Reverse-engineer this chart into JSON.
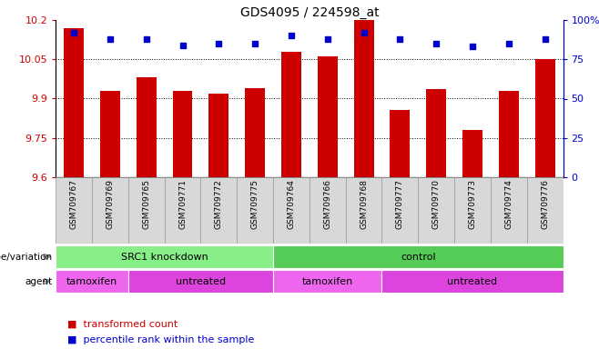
{
  "title": "GDS4095 / 224598_at",
  "samples": [
    "GSM709767",
    "GSM709769",
    "GSM709765",
    "GSM709771",
    "GSM709772",
    "GSM709775",
    "GSM709764",
    "GSM709766",
    "GSM709768",
    "GSM709777",
    "GSM709770",
    "GSM709773",
    "GSM709774",
    "GSM709776"
  ],
  "bar_values": [
    10.17,
    9.93,
    9.98,
    9.93,
    9.92,
    9.94,
    10.08,
    10.06,
    10.2,
    9.855,
    9.935,
    9.78,
    9.93,
    10.05
  ],
  "percentile_values": [
    92,
    88,
    88,
    84,
    85,
    85,
    90,
    88,
    92,
    88,
    85,
    83,
    85,
    88
  ],
  "bar_color": "#cc0000",
  "percentile_color": "#0000cc",
  "ylim_left": [
    9.6,
    10.2
  ],
  "ylim_right": [
    0,
    100
  ],
  "yticks_left": [
    9.6,
    9.75,
    9.9,
    10.05,
    10.2
  ],
  "yticks_right": [
    0,
    25,
    50,
    75,
    100
  ],
  "ytick_labels_right": [
    "0",
    "25",
    "50",
    "75",
    "100%"
  ],
  "grid_values": [
    10.05,
    9.9,
    9.75
  ],
  "genotype_groups": [
    {
      "label": "SRC1 knockdown",
      "start": 0,
      "end": 6,
      "color": "#88ee88"
    },
    {
      "label": "control",
      "start": 6,
      "end": 14,
      "color": "#55cc55"
    }
  ],
  "agent_groups": [
    {
      "label": "tamoxifen",
      "start": 0,
      "end": 2,
      "color": "#ee66ee"
    },
    {
      "label": "untreated",
      "start": 2,
      "end": 6,
      "color": "#dd44dd"
    },
    {
      "label": "tamoxifen",
      "start": 6,
      "end": 9,
      "color": "#ee66ee"
    },
    {
      "label": "untreated",
      "start": 9,
      "end": 14,
      "color": "#dd44dd"
    }
  ],
  "legend_items": [
    {
      "label": "transformed count",
      "color": "#cc0000"
    },
    {
      "label": "percentile rank within the sample",
      "color": "#0000cc"
    }
  ],
  "label_geno": "genotype/variation",
  "label_agent": "agent",
  "background_color": "#ffffff"
}
